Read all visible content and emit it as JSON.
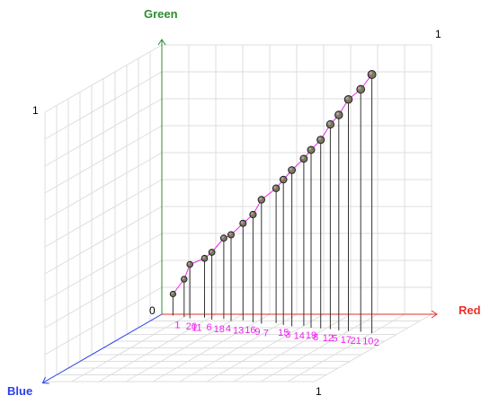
{
  "chart_data": {
    "type": "scatter",
    "subtype": "3d-scatter-with-droplines",
    "axes": {
      "x": {
        "label": "Red",
        "range": [
          0,
          1
        ],
        "tick_labels": [
          "0",
          "1"
        ],
        "color": "#e8302b"
      },
      "y": {
        "label": "Green",
        "range": [
          0,
          1
        ],
        "tick_labels": [
          "1"
        ],
        "color": "#2e8b2e"
      },
      "z": {
        "label": "Blue",
        "range": [
          0,
          1
        ],
        "tick_labels": [
          "1"
        ],
        "color": "#2b3fe8"
      }
    },
    "grid": true,
    "point_label_color": "#ee22ee",
    "connector_color": "#ee22ee",
    "dropline_color": "#333333",
    "point_labels": [
      {
        "text": "1"
      },
      {
        "text": "20"
      },
      {
        "text": "11"
      },
      {
        "text": "6"
      },
      {
        "text": "18"
      },
      {
        "text": "4"
      },
      {
        "text": "13"
      },
      {
        "text": "16"
      },
      {
        "text": "9"
      },
      {
        "text": "7"
      },
      {
        "text": "15"
      },
      {
        "text": "3"
      },
      {
        "text": "14"
      },
      {
        "text": "19"
      },
      {
        "text": "8"
      },
      {
        "text": "12"
      },
      {
        "text": "5"
      },
      {
        "text": "17"
      },
      {
        "text": "21"
      },
      {
        "text": "10"
      },
      {
        "text": "2"
      }
    ],
    "points": [
      {
        "x": 0.05,
        "y": 0.08,
        "z": 0.02
      },
      {
        "x": 0.1,
        "y": 0.14,
        "z": 0.04
      },
      {
        "x": 0.13,
        "y": 0.2,
        "z": 0.06
      },
      {
        "x": 0.18,
        "y": 0.22,
        "z": 0.05
      },
      {
        "x": 0.22,
        "y": 0.25,
        "z": 0.08
      },
      {
        "x": 0.26,
        "y": 0.3,
        "z": 0.07
      },
      {
        "x": 0.3,
        "y": 0.32,
        "z": 0.1
      },
      {
        "x": 0.34,
        "y": 0.36,
        "z": 0.09
      },
      {
        "x": 0.39,
        "y": 0.4,
        "z": 0.12
      },
      {
        "x": 0.43,
        "y": 0.46,
        "z": 0.14
      },
      {
        "x": 0.48,
        "y": 0.5,
        "z": 0.13
      },
      {
        "x": 0.52,
        "y": 0.54,
        "z": 0.16
      },
      {
        "x": 0.56,
        "y": 0.58,
        "z": 0.18
      },
      {
        "x": 0.6,
        "y": 0.62,
        "z": 0.17
      },
      {
        "x": 0.64,
        "y": 0.66,
        "z": 0.2
      },
      {
        "x": 0.68,
        "y": 0.7,
        "z": 0.21
      },
      {
        "x": 0.72,
        "y": 0.76,
        "z": 0.22
      },
      {
        "x": 0.76,
        "y": 0.8,
        "z": 0.24
      },
      {
        "x": 0.8,
        "y": 0.86,
        "z": 0.25
      },
      {
        "x": 0.85,
        "y": 0.9,
        "z": 0.26
      },
      {
        "x": 0.9,
        "y": 0.96,
        "z": 0.28
      }
    ]
  }
}
